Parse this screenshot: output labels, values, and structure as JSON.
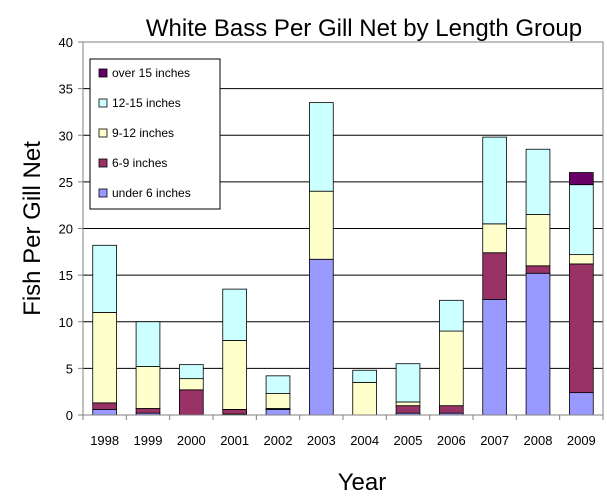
{
  "chart_data": {
    "type": "bar",
    "stacked": true,
    "title": "White Bass Per Gill Net by Length Group",
    "xlabel": "Year",
    "ylabel": "Fish Per Gill Net",
    "ylim": [
      0,
      40
    ],
    "yticks": [
      0,
      5,
      10,
      15,
      20,
      25,
      30,
      35,
      40
    ],
    "grid": true,
    "legend_position": "top-left",
    "categories": [
      "1998",
      "1999",
      "2000",
      "2001",
      "2002",
      "2003",
      "2004",
      "2005",
      "2006",
      "2007",
      "2008",
      "2009"
    ],
    "series": [
      {
        "name": "under 6 inches",
        "color": "#9999ff",
        "values": [
          0.6,
          0.2,
          0,
          0.1,
          0.6,
          16.7,
          0,
          0.2,
          0.2,
          12.4,
          15.2,
          2.4
        ]
      },
      {
        "name": "6-9 inches",
        "color": "#993366",
        "values": [
          0.7,
          0.5,
          2.7,
          0.5,
          0.1,
          0,
          0,
          0.8,
          0.8,
          5.0,
          0.8,
          13.8
        ]
      },
      {
        "name": "9-12 inches",
        "color": "#ffffcc",
        "values": [
          9.7,
          4.5,
          1.2,
          7.4,
          1.6,
          7.3,
          3.5,
          0.4,
          8.0,
          3.1,
          5.5,
          1.0
        ]
      },
      {
        "name": "12-15 inches",
        "color": "#ccffff",
        "values": [
          7.2,
          4.8,
          1.5,
          5.5,
          1.9,
          9.5,
          1.3,
          4.1,
          3.3,
          9.3,
          7.0,
          7.5
        ]
      },
      {
        "name": "over 15 inches",
        "color": "#660066",
        "values": [
          0,
          0,
          0,
          0,
          0,
          0,
          0,
          0,
          0,
          0,
          0,
          1.3
        ]
      }
    ]
  }
}
